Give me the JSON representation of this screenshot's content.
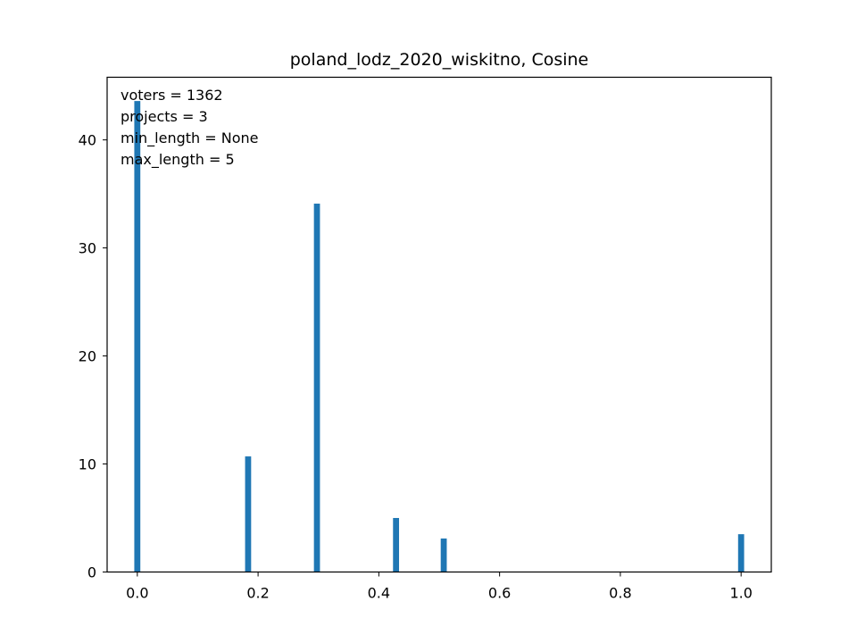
{
  "chart_data": {
    "type": "bar",
    "title": "poland_lodz_2020_wiskitno, Cosine",
    "xlabel": "",
    "ylabel": "",
    "xlim": [
      -0.05,
      1.05
    ],
    "ylim": [
      0,
      45.8
    ],
    "x_ticks": [
      0.0,
      0.2,
      0.4,
      0.6,
      0.8,
      1.0
    ],
    "x_tick_labels": [
      "0.0",
      "0.2",
      "0.4",
      "0.6",
      "0.8",
      "1.0"
    ],
    "y_ticks": [
      0,
      10,
      20,
      30,
      40
    ],
    "y_tick_labels": [
      "0",
      "10",
      "20",
      "30",
      "40"
    ],
    "bar_width": 0.01,
    "bar_color": "#1f77b4",
    "grid": false,
    "x": [
      0.0,
      0.1835,
      0.2975,
      0.4285,
      0.5075,
      1.0
    ],
    "values": [
      43.6,
      10.7,
      34.1,
      5.0,
      3.1,
      3.5
    ],
    "annotations": [
      "voters = 1362",
      "projects = 3",
      "min_length = None",
      "max_length = 5"
    ]
  }
}
